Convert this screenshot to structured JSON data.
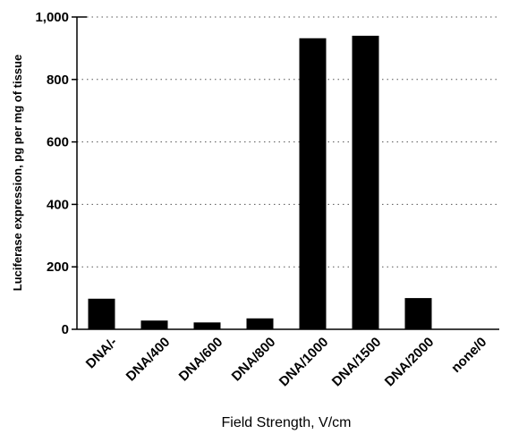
{
  "chart_data": {
    "type": "bar",
    "title": "",
    "xlabel": "Field Strength, V/cm",
    "ylabel": "Luciferase expression, pg per mg of tissue",
    "categories": [
      "DNA/-",
      "DNA/400",
      "DNA/600",
      "DNA/800",
      "DNA/1000",
      "DNA/1500",
      "DNA/2000",
      "none/0"
    ],
    "values": [
      98,
      28,
      22,
      35,
      932,
      940,
      100,
      0
    ],
    "ylim": [
      0,
      1000
    ],
    "yticks": [
      0,
      200,
      400,
      600,
      800,
      1000
    ],
    "ytick_labels": [
      "0",
      "200",
      "400",
      "600",
      "800",
      "1,000"
    ],
    "grid": "horizontal dotted",
    "bar_color": "#000000"
  }
}
